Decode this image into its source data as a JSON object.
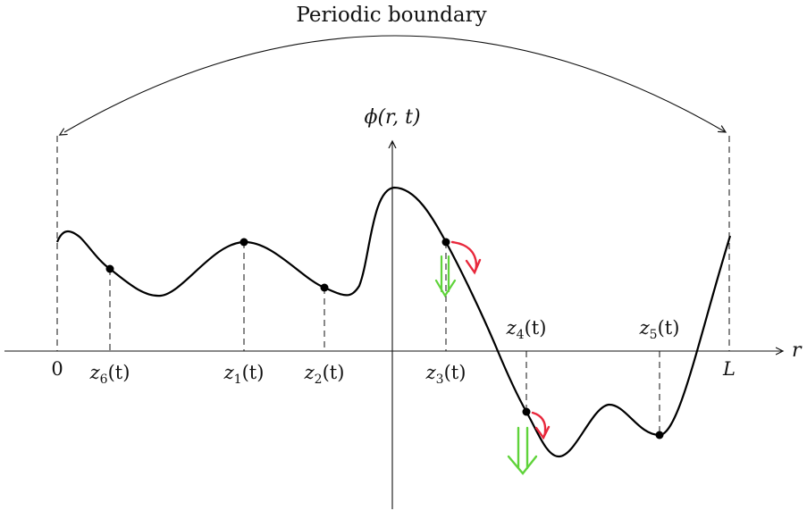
{
  "title": "Periodic boundary",
  "y_axis_label": "ϕ(r, t)",
  "x_axis_label": "r",
  "origin_label": "0",
  "end_label": "L",
  "points": [
    {
      "id": "z1",
      "base": "z",
      "sub": "1",
      "suffix": "(t)"
    },
    {
      "id": "z2",
      "base": "z",
      "sub": "2",
      "suffix": "(t)"
    },
    {
      "id": "z3",
      "base": "z",
      "sub": "3",
      "suffix": "(t)"
    },
    {
      "id": "z4",
      "base": "z",
      "sub": "4",
      "suffix": "(t)"
    },
    {
      "id": "z5",
      "base": "z",
      "sub": "5",
      "suffix": "(t)"
    },
    {
      "id": "z6",
      "base": "z",
      "sub": "6",
      "suffix": "(t)"
    }
  ],
  "colors": {
    "curve": "#000000",
    "red_arrow": "#e8283c",
    "green_arrow": "#5fd33a"
  }
}
